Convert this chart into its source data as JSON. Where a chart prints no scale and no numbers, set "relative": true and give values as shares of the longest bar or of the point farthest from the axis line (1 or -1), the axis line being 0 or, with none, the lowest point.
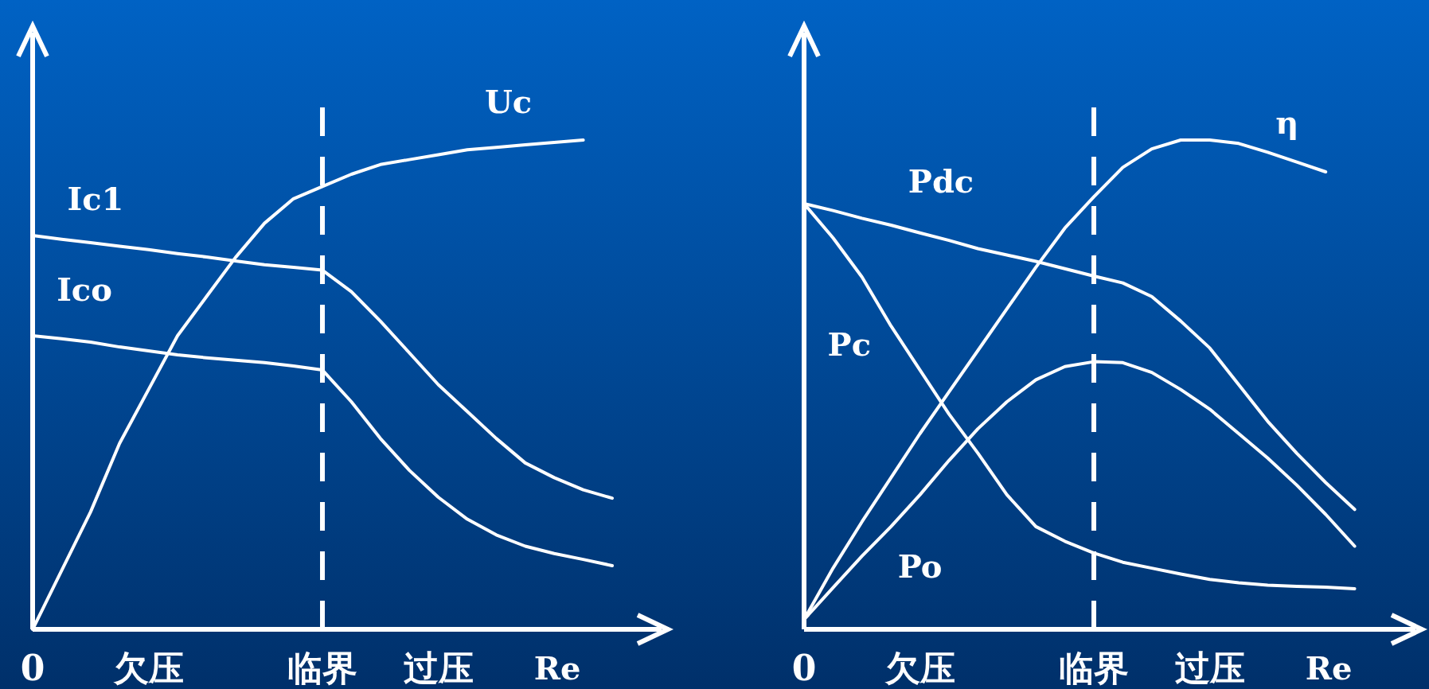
{
  "chart_data": [
    {
      "type": "line",
      "relative": true,
      "xlabel": "Re",
      "categories": [
        "0",
        null,
        null,
        null,
        "欠压",
        null,
        null,
        null,
        null,
        null,
        "临界",
        null,
        null,
        null,
        "过压",
        null,
        null,
        null,
        null,
        null,
        null
      ],
      "ref_lines": [
        {
          "axis": "x",
          "value": "临界",
          "line_style": "dashed",
          "color": "#ffffff"
        }
      ],
      "series": [
        {
          "name": "Uc",
          "color": "#ffffff",
          "values": [
            0,
            0.12,
            0.24,
            0.38,
            0.49,
            0.6,
            0.68,
            0.76,
            0.83,
            0.88,
            0.905,
            0.93,
            0.95,
            0.96,
            0.97,
            0.98,
            0.985,
            0.99,
            0.995,
            1,
            null
          ]
        },
        {
          "name": "Ic1",
          "color": "#ffffff",
          "values": [
            0.805,
            0.797,
            0.79,
            0.783,
            0.776,
            0.768,
            0.761,
            0.753,
            0.745,
            0.74,
            0.734,
            0.69,
            0.63,
            0.565,
            0.5,
            0.445,
            0.39,
            0.34,
            0.31,
            0.285,
            0.268
          ]
        },
        {
          "name": "Ico",
          "color": "#ffffff",
          "values": [
            0.6,
            0.594,
            0.587,
            0.577,
            0.569,
            0.561,
            0.555,
            0.55,
            0.545,
            0.538,
            0.53,
            0.465,
            0.39,
            0.325,
            0.27,
            0.225,
            0.193,
            0.17,
            0.155,
            0.143,
            0.13
          ]
        }
      ]
    },
    {
      "type": "line",
      "relative": true,
      "xlabel": "Re",
      "categories": [
        "0",
        null,
        null,
        null,
        "欠压",
        null,
        null,
        null,
        null,
        null,
        "临界",
        null,
        null,
        null,
        "过压",
        null,
        null,
        null,
        null,
        null,
        null
      ],
      "ref_lines": [
        {
          "axis": "x",
          "value": "临界",
          "line_style": "dashed",
          "color": "#ffffff"
        }
      ],
      "series": [
        {
          "name": "η",
          "color": "#ffffff",
          "values": [
            0.02,
            0.125,
            0.22,
            0.31,
            0.4,
            0.485,
            0.57,
            0.655,
            0.74,
            0.82,
            0.884,
            0.944,
            0.982,
            1,
            1,
            0.993,
            0.975,
            0.955,
            0.935,
            null,
            null
          ]
        },
        {
          "name": "Pdc",
          "color": "#ffffff",
          "values": [
            0.87,
            0.856,
            0.84,
            0.826,
            0.81,
            0.795,
            0.778,
            0.765,
            0.752,
            0.737,
            0.722,
            0.708,
            0.68,
            0.63,
            0.575,
            0.5,
            0.425,
            0.36,
            0.3,
            0.245,
            null
          ]
        },
        {
          "name": "Pc",
          "color": "#ffffff",
          "values": [
            0.87,
            0.8,
            0.72,
            0.62,
            0.53,
            0.44,
            0.36,
            0.275,
            0.21,
            0.18,
            0.156,
            0.137,
            0.125,
            0.113,
            0.102,
            0.095,
            0.09,
            0.088,
            0.086,
            0.083,
            null
          ]
        },
        {
          "name": "Po",
          "color": "#ffffff",
          "values": [
            0.02,
            0.085,
            0.15,
            0.21,
            0.275,
            0.345,
            0.41,
            0.465,
            0.51,
            0.537,
            0.547,
            0.545,
            0.525,
            0.49,
            0.45,
            0.4,
            0.35,
            0.295,
            0.235,
            0.17,
            null
          ]
        }
      ]
    }
  ]
}
